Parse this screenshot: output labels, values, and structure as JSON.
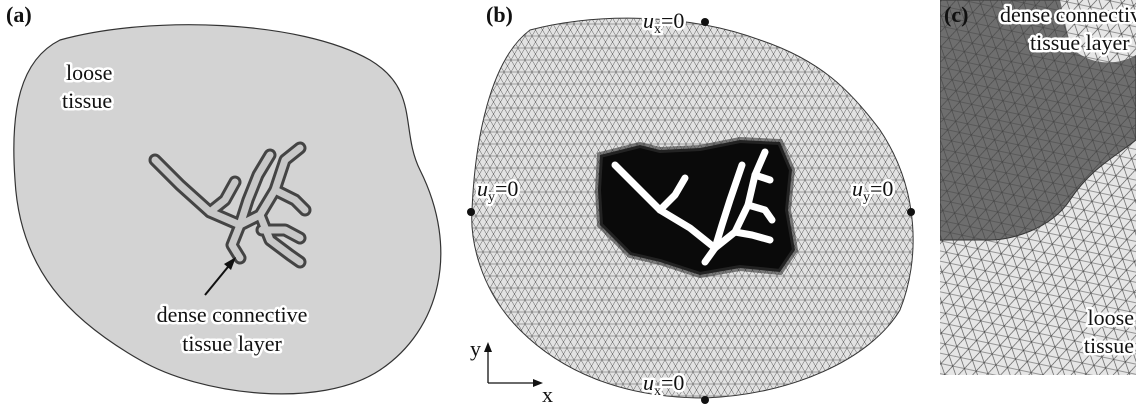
{
  "panels": [
    {
      "label": "(a)",
      "loose_label": [
        "loose",
        "tissue"
      ],
      "dense_label": [
        "dense connective",
        "tissue layer"
      ]
    },
    {
      "label": "(b)",
      "bc_top": {
        "symbol": "u",
        "subscript": "x",
        "value": "=0"
      },
      "bc_left": {
        "symbol": "u",
        "subscript": "y",
        "value": "=0"
      },
      "bc_right": {
        "symbol": "u",
        "subscript": "y",
        "value": "=0"
      },
      "bc_bottom": {
        "symbol": "u",
        "subscript": "x",
        "value": "=0"
      },
      "axis_x": "x",
      "axis_y": "y"
    },
    {
      "label": "(c)",
      "dense_label": [
        "dense connective",
        "tissue layer"
      ],
      "loose_label": [
        "loose",
        "tissue"
      ]
    }
  ]
}
